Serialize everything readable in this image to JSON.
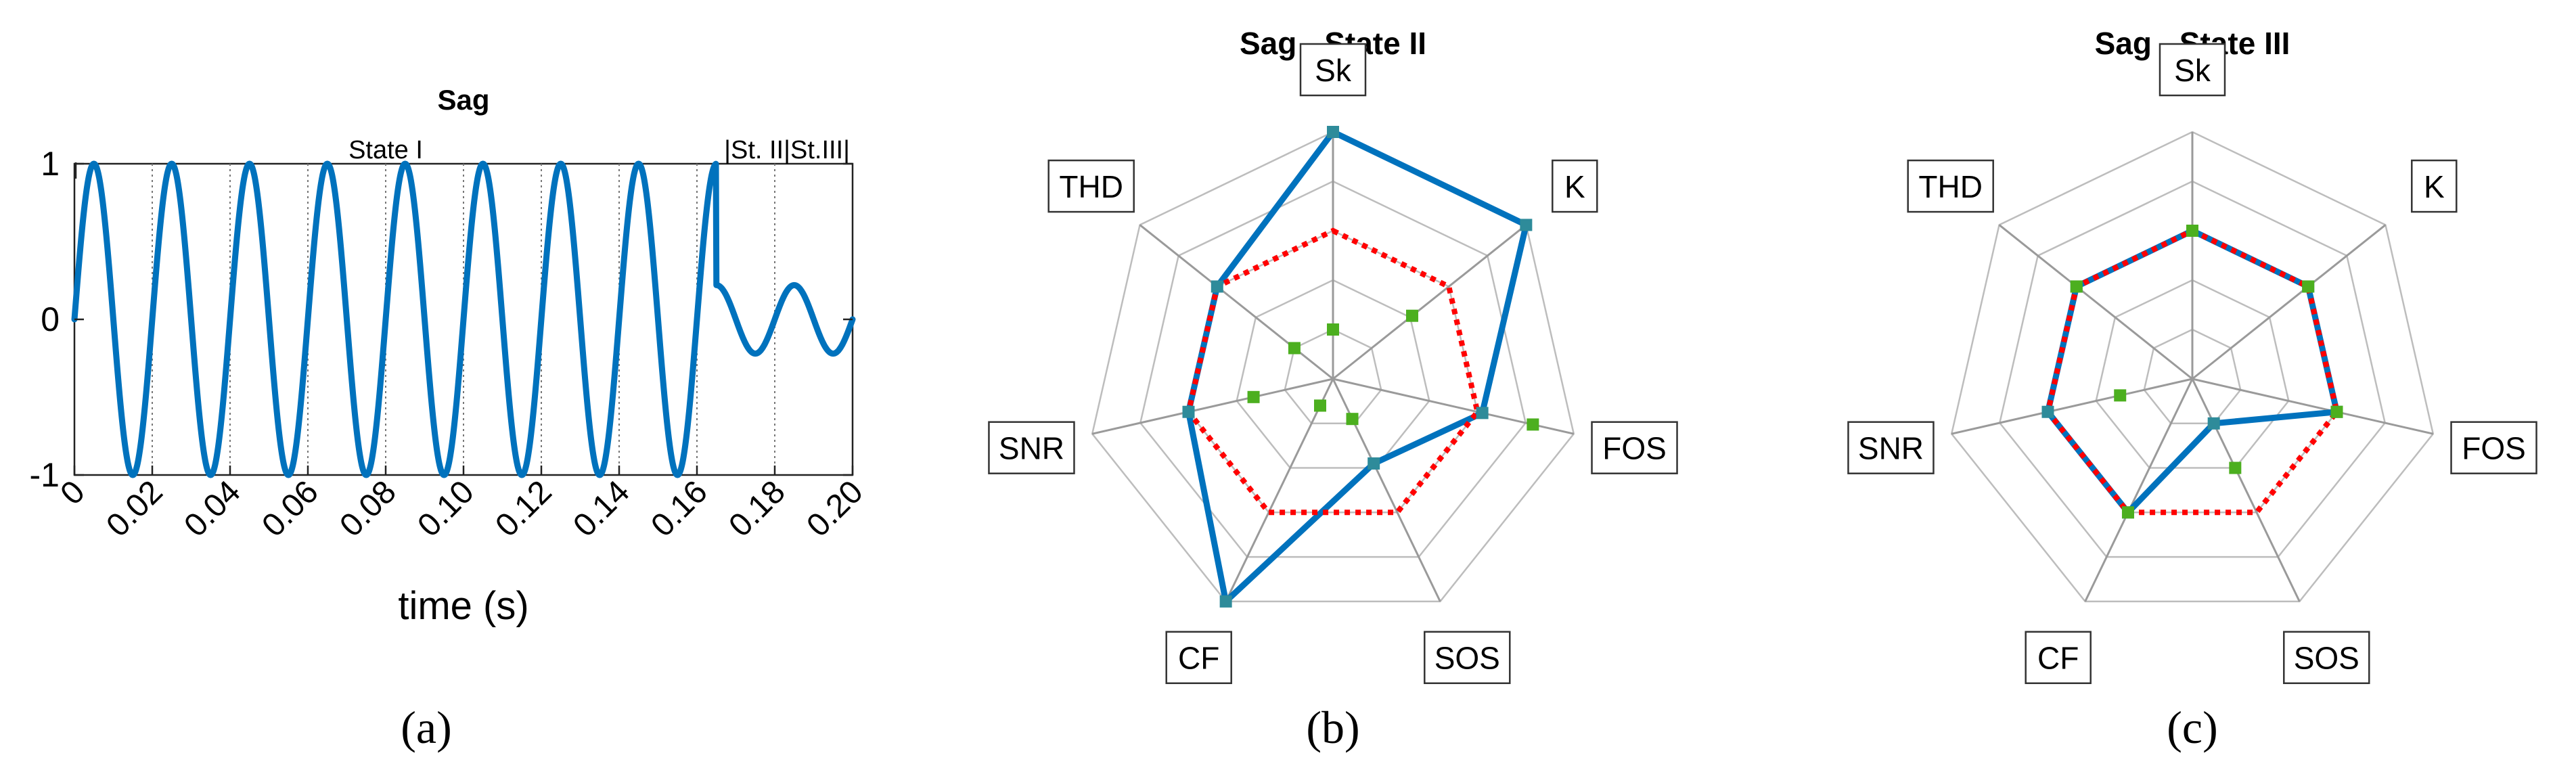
{
  "chart_data": [
    {
      "type": "line",
      "title": "Sag",
      "xlabel": "time (s)",
      "ylabel": "",
      "xlim": [
        0,
        0.2
      ],
      "ylim": [
        -1,
        1
      ],
      "x_ticks": [
        "0",
        "0.02",
        "0.04",
        "0.06",
        "0.08",
        "0.10",
        "0.12",
        "0.14",
        "0.16",
        "0.18",
        "0.20"
      ],
      "y_ticks": [
        "1",
        "0",
        "-1"
      ],
      "frequency_hz": 50,
      "sag_start_s": 0.165,
      "sag_amplitude": 0.22,
      "state_labels": [
        "|",
        "State I",
        "|St. II|St.III|"
      ],
      "state_boundaries_s": [
        0,
        0.165,
        0.18,
        0.2
      ],
      "grid": "vertical dotted at every 0.02 s",
      "line_color": "#0072BD",
      "caption": "(a)"
    },
    {
      "type": "radar",
      "title": "Sag - State II",
      "axes": [
        "Sk",
        "K",
        "FOS",
        "SOS",
        "CF",
        "SNR",
        "THD"
      ],
      "rings": 5,
      "series": [
        {
          "values": [
            1.0,
            1.0,
            0.62,
            0.38,
            1.0,
            0.6,
            0.6
          ],
          "color": "#0072BD",
          "style": "solid"
        },
        {
          "values": [
            0.6,
            0.6,
            0.6,
            0.6,
            0.6,
            0.6,
            0.6
          ],
          "color": "#FF0000",
          "style": "dotted"
        },
        {
          "values": [
            0.2,
            0.41,
            0.83,
            0.18,
            0.12,
            0.33,
            0.2
          ],
          "color": "#4CAF1F",
          "style": "markers"
        }
      ],
      "caption": "(b)"
    },
    {
      "type": "radar",
      "title": "Sag - State III",
      "axes": [
        "Sk",
        "K",
        "FOS",
        "SOS",
        "CF",
        "SNR",
        "THD"
      ],
      "rings": 5,
      "series": [
        {
          "values": [
            0.6,
            0.6,
            0.6,
            0.2,
            0.6,
            0.6,
            0.6
          ],
          "color": "#0072BD",
          "style": "solid"
        },
        {
          "values": [
            0.6,
            0.6,
            0.6,
            0.6,
            0.6,
            0.6,
            0.6
          ],
          "color": "#FF0000",
          "style": "dotted"
        },
        {
          "values": [
            0.6,
            0.6,
            0.6,
            0.4,
            0.6,
            0.3,
            0.6
          ],
          "color": "#4CAF1F",
          "style": "markers"
        }
      ],
      "caption": "(c)"
    }
  ]
}
